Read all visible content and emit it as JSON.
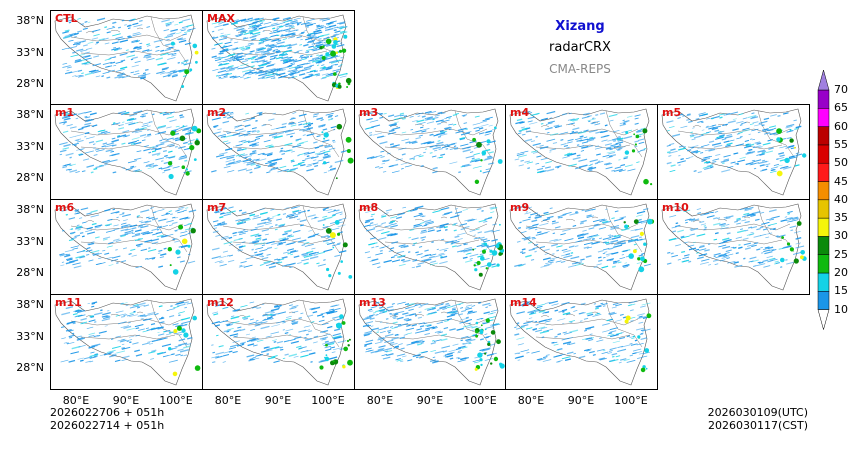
{
  "header": {
    "region": "Xizang",
    "product": "radarCRX",
    "system": "CMA-REPS",
    "region_color": "#1010d0",
    "system_color": "#888888"
  },
  "panels": [
    {
      "label": "CTL",
      "row": 0,
      "col": 0,
      "density": 0.35,
      "cluster": 0.1
    },
    {
      "label": "MAX",
      "row": 0,
      "col": 1,
      "density": 1.0,
      "cluster": 0.9
    },
    {
      "label": "m1",
      "row": 1,
      "col": 0,
      "density": 0.35,
      "cluster": 0.4
    },
    {
      "label": "m2",
      "row": 1,
      "col": 1,
      "density": 0.35,
      "cluster": 0.2
    },
    {
      "label": "m3",
      "row": 1,
      "col": 2,
      "density": 0.3,
      "cluster": 0.2
    },
    {
      "label": "m4",
      "row": 1,
      "col": 3,
      "density": 0.3,
      "cluster": 0.2
    },
    {
      "label": "m5",
      "row": 1,
      "col": 4,
      "density": 0.35,
      "cluster": 0.2
    },
    {
      "label": "m6",
      "row": 2,
      "col": 0,
      "density": 0.3,
      "cluster": 0.2
    },
    {
      "label": "m7",
      "row": 2,
      "col": 1,
      "density": 0.35,
      "cluster": 0.3
    },
    {
      "label": "m8",
      "row": 2,
      "col": 2,
      "density": 0.3,
      "cluster": 0.6
    },
    {
      "label": "m9",
      "row": 2,
      "col": 3,
      "density": 0.3,
      "cluster": 0.4
    },
    {
      "label": "m10",
      "row": 2,
      "col": 4,
      "density": 0.3,
      "cluster": 0.2
    },
    {
      "label": "m11",
      "row": 3,
      "col": 0,
      "density": 0.3,
      "cluster": 0.2
    },
    {
      "label": "m12",
      "row": 3,
      "col": 1,
      "density": 0.3,
      "cluster": 0.6
    },
    {
      "label": "m13",
      "row": 3,
      "col": 2,
      "density": 0.45,
      "cluster": 0.8
    },
    {
      "label": "m14",
      "row": 3,
      "col": 3,
      "density": 0.3,
      "cluster": 0.2
    }
  ],
  "axes": {
    "lat_labels": [
      "38°N",
      "33°N",
      "28°N"
    ],
    "lon_labels": [
      "80°E",
      "90°E",
      "100°E"
    ]
  },
  "colorbar": {
    "levels": [
      "10",
      "15",
      "20",
      "25",
      "30",
      "35",
      "40",
      "45",
      "50",
      "55",
      "60",
      "65",
      "70"
    ],
    "colors": [
      "#1b96e8",
      "#14d2e6",
      "#0fba0f",
      "#0b8a0b",
      "#f5f50a",
      "#e6c400",
      "#f58e00",
      "#ff1a1a",
      "#d90000",
      "#bb0000",
      "#ff00ff",
      "#9800c8",
      "#a080e0"
    ]
  },
  "footer": {
    "init_utc": "2026022706  +  051h",
    "init_cst": "2026022714  +  051h",
    "valid_utc": "2026030109(UTC)",
    "valid_cst": "2026030117(CST)"
  }
}
